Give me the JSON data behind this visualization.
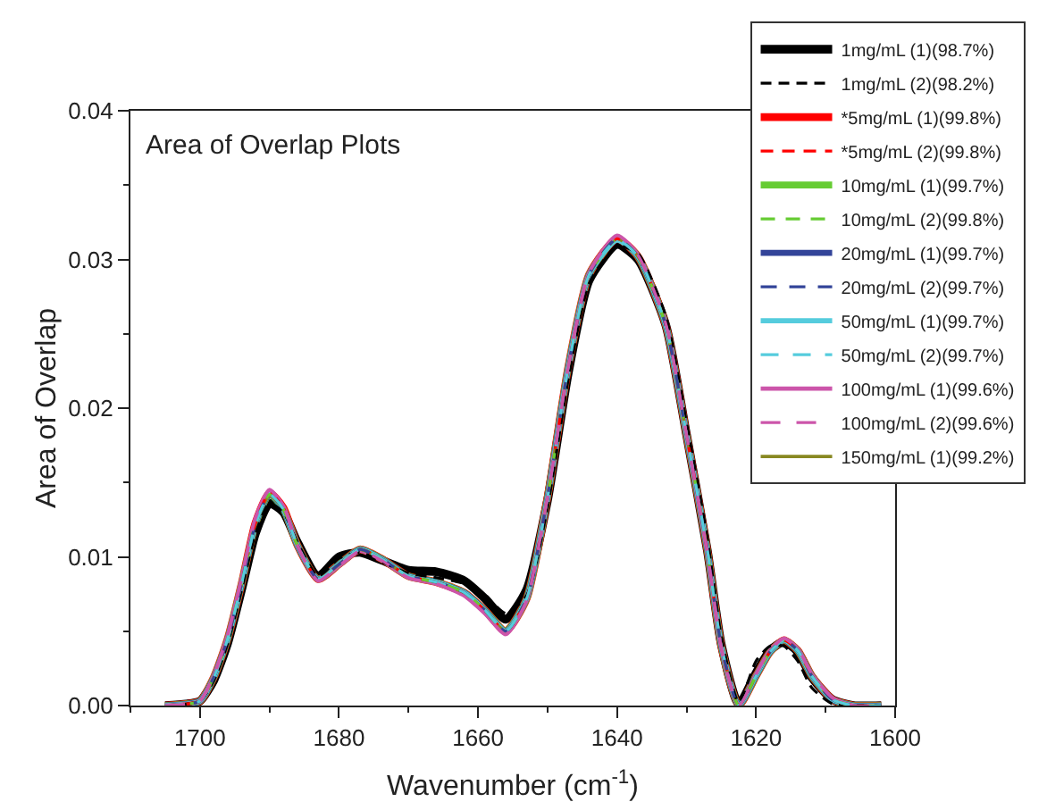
{
  "chart_data": {
    "type": "line",
    "title": "Area of Overlap Plots",
    "xlabel": "Wavenumber (cm$^{-1}$)",
    "ylabel": "Area of Overlap",
    "x": [
      1705,
      1702,
      1700,
      1698,
      1696,
      1694,
      1692,
      1690,
      1688,
      1686,
      1683,
      1680,
      1677,
      1674,
      1670,
      1666,
      1662,
      1659,
      1656,
      1653,
      1650,
      1647,
      1644,
      1640,
      1637,
      1633,
      1630,
      1627,
      1625,
      1622.5,
      1620,
      1618,
      1616,
      1614,
      1612,
      1609,
      1606,
      1602
    ],
    "xlim": [
      1710,
      1600
    ],
    "xticks": [
      1700,
      1680,
      1660,
      1640,
      1620,
      1600
    ],
    "ylim": [
      0,
      0.04
    ],
    "yticks": [
      {
        "value": 0,
        "label": "0.00"
      },
      {
        "value": 0.01,
        "label": "0.01"
      },
      {
        "value": 0.02,
        "label": "0.02"
      },
      {
        "value": 0.03,
        "label": "0.03"
      },
      {
        "value": 0.04,
        "label": "0.04"
      }
    ],
    "grid": false,
    "legend": "top right",
    "series": [
      {
        "name": "1mg/mL (1)(98.7%)",
        "color": "#000000",
        "line_style": "solid",
        "values": [
          0,
          0.0001,
          0.0003,
          0.0017,
          0.0042,
          0.0078,
          0.0116,
          0.0136,
          0.013,
          0.011,
          0.0087,
          0.01,
          0.0103,
          0.0098,
          0.0091,
          0.009,
          0.0084,
          0.0072,
          0.0058,
          0.0078,
          0.0138,
          0.0224,
          0.0286,
          0.031,
          0.03,
          0.0256,
          0.0182,
          0.0104,
          0.0041,
          0.0001,
          0.0022,
          0.0037,
          0.0043,
          0.0036,
          0.0019,
          0.0004,
          0,
          0
        ]
      },
      {
        "name": "1mg/mL (2)(98.2%)",
        "color": "#000000",
        "line_style": "dashed",
        "values": [
          0,
          0.0001,
          0.0003,
          0.0017,
          0.0042,
          0.0078,
          0.0116,
          0.0136,
          0.013,
          0.011,
          0.0087,
          0.0099,
          0.0103,
          0.0097,
          0.0089,
          0.0086,
          0.0082,
          0.0074,
          0.0062,
          0.0074,
          0.0134,
          0.022,
          0.0284,
          0.0309,
          0.0304,
          0.0262,
          0.019,
          0.0112,
          0.0046,
          0.0002,
          0.003,
          0.004,
          0.004,
          0.003,
          0.0012,
          0.0001,
          0,
          0
        ]
      },
      {
        "name": "*5mg/mL (1)(99.8%)",
        "color": "#ff0000",
        "line_style": "solid",
        "values": [
          0,
          0.0001,
          0.0003,
          0.0019,
          0.0045,
          0.0082,
          0.0123,
          0.0143,
          0.0133,
          0.0108,
          0.0085,
          0.0095,
          0.0105,
          0.0099,
          0.0087,
          0.0083,
          0.0076,
          0.0064,
          0.005,
          0.0072,
          0.014,
          0.0228,
          0.029,
          0.0314,
          0.0302,
          0.0256,
          0.0182,
          0.0104,
          0.004,
          0,
          0.002,
          0.0036,
          0.0044,
          0.0037,
          0.002,
          0.0004,
          0,
          0
        ]
      },
      {
        "name": "*5mg/mL (2)(99.8%)",
        "color": "#ff0000",
        "line_style": "dashed",
        "values": [
          0,
          0.0001,
          0.0003,
          0.0019,
          0.0045,
          0.0082,
          0.0123,
          0.0143,
          0.0133,
          0.0108,
          0.0085,
          0.0095,
          0.0105,
          0.0099,
          0.0087,
          0.0083,
          0.0076,
          0.0064,
          0.005,
          0.0072,
          0.014,
          0.0228,
          0.029,
          0.0314,
          0.0302,
          0.0256,
          0.0182,
          0.0104,
          0.004,
          0,
          0.002,
          0.0036,
          0.0044,
          0.0037,
          0.002,
          0.0004,
          0,
          0
        ]
      },
      {
        "name": "10mg/mL (1)(99.7%)",
        "color": "#66cc33",
        "line_style": "solid",
        "values": [
          0,
          0.0001,
          0.0003,
          0.0019,
          0.0045,
          0.0082,
          0.0122,
          0.0142,
          0.0132,
          0.0108,
          0.0085,
          0.0095,
          0.0105,
          0.0099,
          0.0087,
          0.0083,
          0.0076,
          0.0064,
          0.005,
          0.0072,
          0.014,
          0.0228,
          0.029,
          0.0314,
          0.0302,
          0.0256,
          0.0182,
          0.0104,
          0.004,
          0,
          0.002,
          0.0036,
          0.0044,
          0.0037,
          0.002,
          0.0004,
          0,
          0
        ]
      },
      {
        "name": "10mg/mL (2)(99.8%)",
        "color": "#66cc33",
        "line_style": "dashed",
        "values": [
          0,
          0.0001,
          0.0003,
          0.0019,
          0.0045,
          0.0082,
          0.0122,
          0.0142,
          0.0132,
          0.0108,
          0.0085,
          0.0095,
          0.0105,
          0.0099,
          0.0087,
          0.0083,
          0.0076,
          0.0064,
          0.005,
          0.0072,
          0.014,
          0.0228,
          0.029,
          0.0314,
          0.0302,
          0.0256,
          0.0182,
          0.0104,
          0.004,
          0,
          0.002,
          0.0036,
          0.0044,
          0.0037,
          0.002,
          0.0004,
          0,
          0
        ]
      },
      {
        "name": "20mg/mL (1)(99.7%)",
        "color": "#334499",
        "line_style": "solid",
        "values": [
          0,
          0.0001,
          0.0003,
          0.0019,
          0.0045,
          0.0082,
          0.0122,
          0.0142,
          0.0132,
          0.0108,
          0.0085,
          0.0095,
          0.0105,
          0.0099,
          0.0087,
          0.0083,
          0.0076,
          0.0064,
          0.005,
          0.0072,
          0.014,
          0.0228,
          0.029,
          0.0314,
          0.0302,
          0.0256,
          0.0182,
          0.0104,
          0.004,
          0,
          0.002,
          0.0036,
          0.0044,
          0.0037,
          0.002,
          0.0004,
          0,
          0
        ]
      },
      {
        "name": "20mg/mL (2)(99.7%)",
        "color": "#334499",
        "line_style": "dashed",
        "values": [
          0,
          0.0001,
          0.0003,
          0.0019,
          0.0045,
          0.0082,
          0.0122,
          0.0142,
          0.0132,
          0.0108,
          0.0085,
          0.0095,
          0.0105,
          0.0099,
          0.0087,
          0.0083,
          0.0076,
          0.0064,
          0.005,
          0.0072,
          0.014,
          0.0228,
          0.029,
          0.0314,
          0.0302,
          0.0256,
          0.0182,
          0.0104,
          0.004,
          0,
          0.002,
          0.0036,
          0.0044,
          0.0037,
          0.002,
          0.0004,
          0,
          0
        ]
      },
      {
        "name": "50mg/mL (1)(99.7%)",
        "color": "#55ccdd",
        "line_style": "solid",
        "values": [
          0,
          0.0001,
          0.0003,
          0.0019,
          0.0045,
          0.0082,
          0.0122,
          0.0142,
          0.0132,
          0.0108,
          0.0085,
          0.0095,
          0.0105,
          0.0099,
          0.0087,
          0.0083,
          0.0076,
          0.0064,
          0.005,
          0.0072,
          0.014,
          0.0228,
          0.029,
          0.0313,
          0.0302,
          0.0256,
          0.0182,
          0.0104,
          0.004,
          0,
          0.002,
          0.0036,
          0.0044,
          0.0037,
          0.002,
          0.0004,
          0,
          0
        ]
      },
      {
        "name": "50mg/mL (2)(99.7%)",
        "color": "#55ccdd",
        "line_style": "dashed",
        "values": [
          0,
          0.0001,
          0.0003,
          0.0019,
          0.0045,
          0.0082,
          0.0122,
          0.0142,
          0.0132,
          0.0108,
          0.0085,
          0.0095,
          0.0105,
          0.0099,
          0.0087,
          0.0083,
          0.0076,
          0.0064,
          0.005,
          0.0072,
          0.014,
          0.0228,
          0.029,
          0.0313,
          0.0302,
          0.0256,
          0.0182,
          0.0104,
          0.004,
          0,
          0.002,
          0.0036,
          0.0044,
          0.0037,
          0.002,
          0.0004,
          0,
          0
        ]
      },
      {
        "name": "100mg/mL (1)(99.6%)",
        "color": "#cc55aa",
        "line_style": "solid",
        "values": [
          0,
          0.0001,
          0.0003,
          0.002,
          0.0047,
          0.0085,
          0.0126,
          0.0145,
          0.0134,
          0.0108,
          0.0084,
          0.0094,
          0.0104,
          0.0098,
          0.0086,
          0.0082,
          0.0074,
          0.0062,
          0.0048,
          0.0071,
          0.014,
          0.0228,
          0.0291,
          0.0316,
          0.0303,
          0.0257,
          0.0182,
          0.0103,
          0.0039,
          0,
          0.0021,
          0.0037,
          0.0045,
          0.0038,
          0.0021,
          0.0005,
          0,
          0
        ]
      },
      {
        "name": "100mg/mL (2)(99.6%)",
        "color": "#cc55aa",
        "line_style": "dashed",
        "values": [
          0,
          0.0001,
          0.0003,
          0.002,
          0.0047,
          0.0085,
          0.0126,
          0.0145,
          0.0134,
          0.0108,
          0.0084,
          0.0094,
          0.0104,
          0.0098,
          0.0086,
          0.0082,
          0.0074,
          0.0062,
          0.0048,
          0.0071,
          0.014,
          0.0228,
          0.0291,
          0.0316,
          0.0303,
          0.0257,
          0.0182,
          0.0103,
          0.0039,
          0,
          0.0021,
          0.0037,
          0.0045,
          0.0038,
          0.0021,
          0.0005,
          0,
          0
        ]
      },
      {
        "name": "150mg/mL (1)(99.2%)",
        "color": "#888822",
        "line_style": "solid",
        "values": [
          0,
          0.0001,
          0.0003,
          0.0019,
          0.0045,
          0.0082,
          0.0122,
          0.0141,
          0.0132,
          0.0108,
          0.0085,
          0.0095,
          0.0105,
          0.0099,
          0.0087,
          0.0083,
          0.0076,
          0.0064,
          0.005,
          0.0072,
          0.014,
          0.0228,
          0.029,
          0.0314,
          0.0302,
          0.0256,
          0.0182,
          0.0104,
          0.004,
          0,
          0.002,
          0.0036,
          0.0044,
          0.0037,
          0.002,
          0.0004,
          0,
          0
        ]
      }
    ]
  }
}
